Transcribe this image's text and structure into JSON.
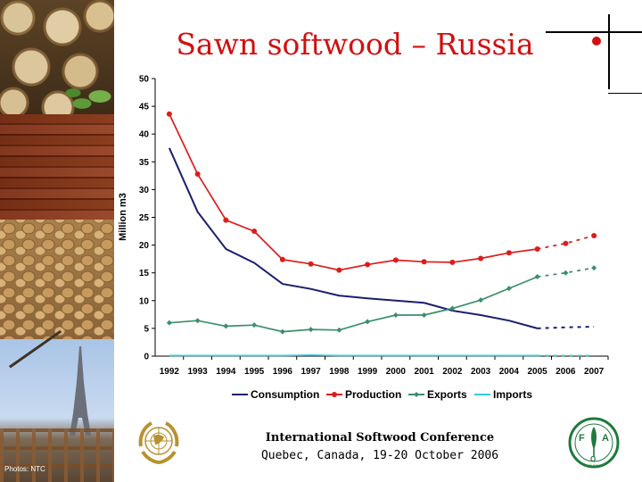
{
  "slide": {
    "title": "Sawn softwood – Russia",
    "photo_credit": "Photos: NTC"
  },
  "footer": {
    "title": "International Softwood Conference",
    "subtitle": "Quebec, Canada, 19-20 October 2006"
  },
  "logos": {
    "left": "un-emblem",
    "right": "fao-emblem",
    "fao_letters": [
      "F",
      "A",
      "O"
    ],
    "fao_motto": "FIAT PANIS"
  },
  "colors": {
    "title": "#d01010",
    "consumption": "#1a1f6e",
    "production": "#dd1c1c",
    "exports": "#3a8f6a",
    "imports": "#33ccdd"
  },
  "chart_data": {
    "type": "line",
    "x": [
      "1992",
      "1993",
      "1994",
      "1995",
      "1996",
      "1997",
      "1998",
      "1999",
      "2000",
      "2001",
      "2002",
      "2003",
      "2004",
      "2005",
      "2006",
      "2007"
    ],
    "ylabel": "Million m3",
    "ylim": [
      0,
      50
    ],
    "yticks": [
      0,
      5,
      10,
      15,
      20,
      25,
      30,
      35,
      40,
      45,
      50
    ],
    "grid": false,
    "legend_position": "bottom",
    "forecast_from": "2005",
    "series": [
      {
        "name": "Consumption",
        "key": "consumption",
        "marker": "none",
        "values": [
          37.5,
          26,
          19.3,
          16.8,
          13,
          12.1,
          10.9,
          10.4,
          10,
          9.6,
          8.2,
          7.4,
          6.4,
          5,
          5.2,
          5.3
        ]
      },
      {
        "name": "Production",
        "key": "production",
        "marker": "circle",
        "values": [
          43.6,
          32.8,
          24.5,
          22.5,
          17.4,
          16.6,
          15.5,
          16.5,
          17.3,
          17,
          16.9,
          17.6,
          18.6,
          19.3,
          20.3,
          21.7
        ]
      },
      {
        "name": "Exports",
        "key": "exports",
        "marker": "diamond",
        "values": [
          6,
          6.4,
          5.4,
          5.6,
          4.4,
          4.8,
          4.7,
          6.2,
          7.4,
          7.4,
          8.6,
          10.1,
          12.2,
          14.3,
          15,
          15.9
        ]
      },
      {
        "name": "Imports",
        "key": "imports",
        "marker": "none",
        "values": [
          0.1,
          0.1,
          0.1,
          0.1,
          0.1,
          0.2,
          0.1,
          0.1,
          0.1,
          0.1,
          0.1,
          0.1,
          0.1,
          0.1,
          0.1,
          0.1
        ]
      }
    ]
  }
}
